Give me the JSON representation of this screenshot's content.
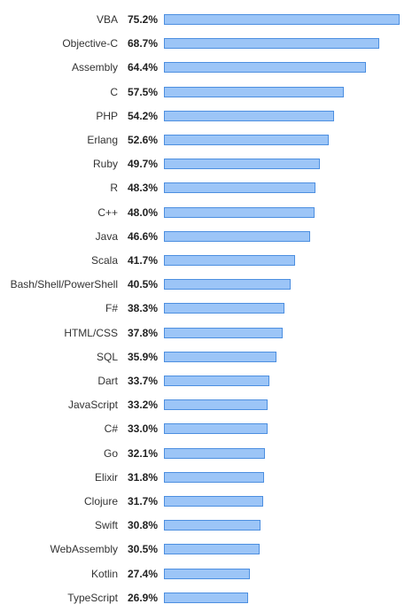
{
  "chart_data": {
    "type": "bar",
    "orientation": "horizontal",
    "value_suffix": "%",
    "categories": [
      "VBA",
      "Objective-C",
      "Assembly",
      "C",
      "PHP",
      "Erlang",
      "Ruby",
      "R",
      "C++",
      "Java",
      "Scala",
      "Bash/Shell/PowerShell",
      "F#",
      "HTML/CSS",
      "SQL",
      "Dart",
      "JavaScript",
      "C#",
      "Go",
      "Elixir",
      "Clojure",
      "Swift",
      "WebAssembly",
      "Kotlin",
      "TypeScript"
    ],
    "values": [
      75.2,
      68.7,
      64.4,
      57.5,
      54.2,
      52.6,
      49.7,
      48.3,
      48.0,
      46.6,
      41.7,
      40.5,
      38.3,
      37.8,
      35.9,
      33.7,
      33.2,
      33.0,
      32.1,
      31.8,
      31.7,
      30.8,
      30.5,
      27.4,
      26.9
    ],
    "value_labels": [
      "75.2%",
      "68.7%",
      "64.4%",
      "57.5%",
      "54.2%",
      "52.6%",
      "49.7%",
      "48.3%",
      "48.0%",
      "46.6%",
      "41.7%",
      "40.5%",
      "38.3%",
      "37.8%",
      "35.9%",
      "33.7%",
      "33.2%",
      "33.0%",
      "32.1%",
      "31.8%",
      "31.7%",
      "30.8%",
      "30.5%",
      "27.4%",
      "26.9%"
    ],
    "bar_fill": "#9cc5f7",
    "bar_border": "#4d8fe0",
    "grid": false,
    "legend": "none"
  }
}
